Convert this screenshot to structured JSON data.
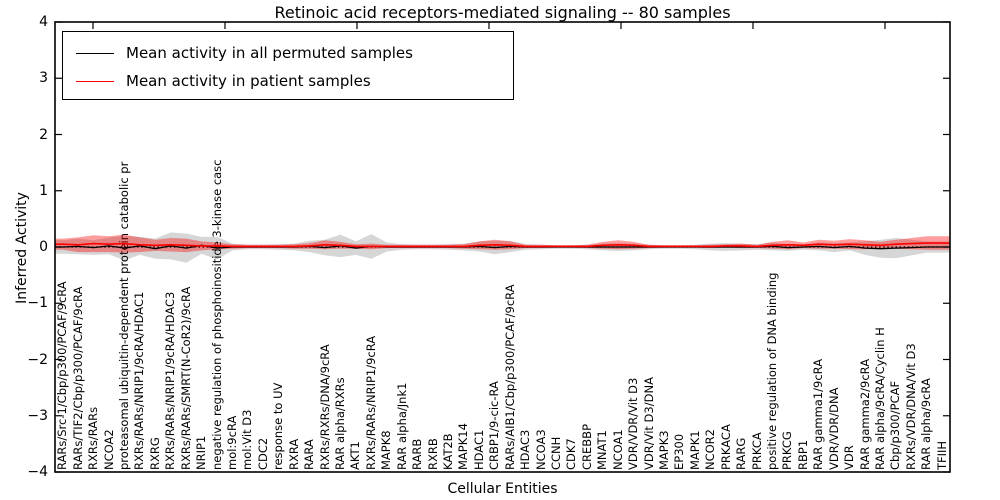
{
  "figure": {
    "title": "Retinoic acid receptors-mediated signaling -- 80 samples",
    "xlabel": "Cellular Entities",
    "ylabel": "Inferred Activity"
  },
  "legend": {
    "items": [
      {
        "label": "Mean activity in all permuted samples",
        "color": "#000000"
      },
      {
        "label": "Mean activity in patient samples",
        "color": "#ff0000"
      }
    ]
  },
  "axes": {
    "y_tick_labels": [
      "4",
      "3",
      "2",
      "1",
      "0",
      "−1",
      "−2",
      "−3",
      "−4"
    ],
    "y_tick_values": [
      4,
      3,
      2,
      1,
      0,
      -1,
      -2,
      -3,
      -4
    ]
  },
  "colors": {
    "permuted_line": "#000000",
    "patient_line": "#ff0000",
    "permuted_band": "rgba(0,0,0,0.16)",
    "patient_band": "rgba(255,0,0,0.38)",
    "axis": "#000000"
  },
  "chart_data": {
    "type": "line",
    "title": "Retinoic acid receptors-mediated signaling -- 80 samples",
    "xlabel": "Cellular Entities",
    "ylabel": "Inferred Activity",
    "ylim": [
      -4,
      4
    ],
    "grid": false,
    "zero_reference_line": true,
    "legend_position": "upper left",
    "categories": [
      "RARs/Src-1/Cbp/p300/PCAF/9cRA",
      "RARs/TIF2/Cbp/p300/PCAF/9cRA",
      "RXRs/RARs",
      "NCOA2",
      "proteasomal ubiquitin-dependent protein catabolic pr",
      "RXRs/RARs/NRIP1/9cRA/HDAC1",
      "RXRG",
      "RXRs/RARs/NRIP1/9cRA/HDAC3",
      "RXRs/RARs/SMRT(N-CoR2)/9cRA",
      "NRIP1",
      "negative regulation of phosphoinositide 3-kinase casc",
      "mol:9cRA",
      "mol:Vit D3",
      "CDC2",
      "response to UV",
      "RXRA",
      "RARA",
      "RXRs/RXRs/DNA/9cRA",
      "RAR alpha/RXRs",
      "AKT1",
      "RXRs/RARs/NRIP1/9cRA",
      "MAPK8",
      "RAR alpha/Jnk1",
      "RARB",
      "RXRB",
      "KAT2B",
      "MAPK14",
      "HDAC1",
      "CRBP1/9-cic-RA",
      "RARs/AIB1/Cbp/p300/PCAF/9cRA",
      "HDAC3",
      "NCOA3",
      "CCNH",
      "CDK7",
      "CREBBP",
      "MNAT1",
      "NCOA1",
      "VDR/VDR/Vit D3",
      "VDR/Vit D3/DNA",
      "MAPK3",
      "EP300",
      "MAPK1",
      "NCOR2",
      "PRKACA",
      "RARG",
      "PRKCA",
      "positive regulation of DNA binding",
      "PRKCG",
      "RBP1",
      "RAR gamma1/9cRA",
      "VDR/VDR/DNA",
      "VDR",
      "RAR gamma2/9cRA",
      "RAR alpha/9cRA/Cyclin H",
      "Cbp/p300/PCAF",
      "RXRs/VDR/DNA/Vit D3",
      "RAR alpha/9cRA",
      "TFIIH"
    ],
    "series": [
      {
        "name": "Mean activity in all permuted samples",
        "color": "#000000",
        "values": [
          0.0,
          0.01,
          -0.01,
          0.02,
          -0.02,
          0.02,
          -0.03,
          0.02,
          -0.02,
          0.03,
          -0.02,
          0.0,
          0.0,
          0.0,
          0.0,
          0.0,
          0.01,
          -0.01,
          0.02,
          -0.02,
          0.01,
          0.0,
          0.0,
          0.0,
          0.0,
          0.0,
          0.0,
          0.01,
          -0.01,
          0.01,
          0.0,
          0.0,
          0.0,
          0.0,
          0.0,
          0.0,
          0.0,
          0.0,
          0.0,
          0.0,
          0.0,
          0.0,
          0.0,
          0.0,
          0.0,
          0.0,
          0.01,
          -0.01,
          0.0,
          0.01,
          -0.01,
          0.01,
          -0.02,
          -0.03,
          -0.02,
          -0.01,
          0.0,
          0.0
        ],
        "band_halfwidth": [
          0.12,
          0.14,
          0.13,
          0.15,
          0.22,
          0.16,
          0.18,
          0.24,
          0.26,
          0.15,
          0.2,
          0.06,
          0.04,
          0.04,
          0.05,
          0.06,
          0.1,
          0.14,
          0.2,
          0.12,
          0.22,
          0.08,
          0.05,
          0.04,
          0.04,
          0.05,
          0.06,
          0.09,
          0.12,
          0.1,
          0.05,
          0.04,
          0.03,
          0.03,
          0.04,
          0.06,
          0.07,
          0.06,
          0.04,
          0.03,
          0.03,
          0.04,
          0.06,
          0.07,
          0.06,
          0.05,
          0.07,
          0.06,
          0.05,
          0.07,
          0.08,
          0.07,
          0.12,
          0.16,
          0.18,
          0.14,
          0.1,
          0.1
        ]
      },
      {
        "name": "Mean activity in patient samples",
        "color": "#ff0000",
        "values": [
          0.05,
          0.04,
          0.06,
          0.05,
          0.06,
          0.04,
          0.03,
          0.04,
          0.03,
          0.02,
          0.02,
          0.01,
          0.01,
          0.01,
          0.01,
          0.01,
          0.02,
          0.04,
          0.03,
          0.01,
          0.01,
          0.01,
          0.01,
          0.01,
          0.01,
          0.01,
          0.01,
          0.03,
          0.04,
          0.03,
          0.01,
          0.01,
          0.01,
          0.01,
          0.01,
          0.03,
          0.04,
          0.03,
          0.01,
          0.01,
          0.01,
          0.01,
          0.01,
          0.02,
          0.02,
          0.01,
          0.03,
          0.04,
          0.03,
          0.05,
          0.04,
          0.05,
          0.04,
          0.03,
          0.05,
          0.06,
          0.07,
          0.07
        ],
        "band_halfwidth": [
          0.1,
          0.13,
          0.15,
          0.14,
          0.16,
          0.13,
          0.1,
          0.12,
          0.12,
          0.08,
          0.06,
          0.04,
          0.03,
          0.03,
          0.03,
          0.04,
          0.05,
          0.08,
          0.06,
          0.04,
          0.05,
          0.03,
          0.03,
          0.03,
          0.03,
          0.03,
          0.04,
          0.07,
          0.09,
          0.07,
          0.03,
          0.03,
          0.02,
          0.02,
          0.03,
          0.06,
          0.08,
          0.06,
          0.03,
          0.02,
          0.02,
          0.02,
          0.03,
          0.03,
          0.04,
          0.03,
          0.06,
          0.08,
          0.05,
          0.08,
          0.07,
          0.09,
          0.08,
          0.06,
          0.08,
          0.1,
          0.12,
          0.12
        ]
      }
    ]
  }
}
